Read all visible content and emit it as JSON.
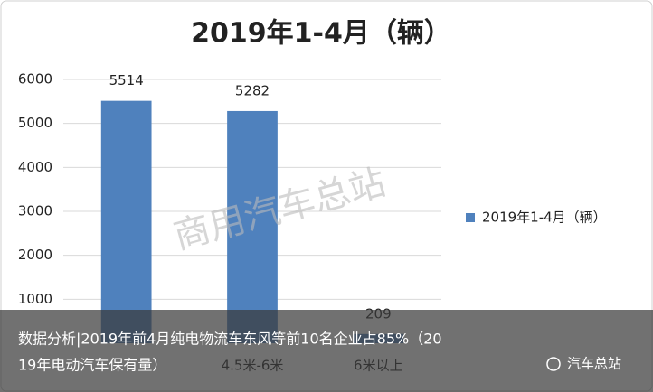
{
  "chart_data": {
    "type": "bar",
    "title": "2019年1-4月（辆）",
    "categories": [
      null,
      "4.5米-6米",
      "6米以上"
    ],
    "series": [
      {
        "name": "2019年1-4月（辆）",
        "color": "#4f81bd",
        "values": [
          5514,
          5282,
          209
        ]
      }
    ],
    "ylim": [
      0,
      6000
    ],
    "yticks": [
      1000,
      2000,
      3000,
      4000,
      5000,
      6000
    ],
    "grid": true,
    "legend": "right"
  },
  "watermark": "商用汽车总站",
  "caption": {
    "lines": [
      "数据分析|2019年前4月纯电物流车东风等前10名企业占85%（20",
      "19年电动汽车保有量）"
    ]
  },
  "logo": "汽车总站"
}
